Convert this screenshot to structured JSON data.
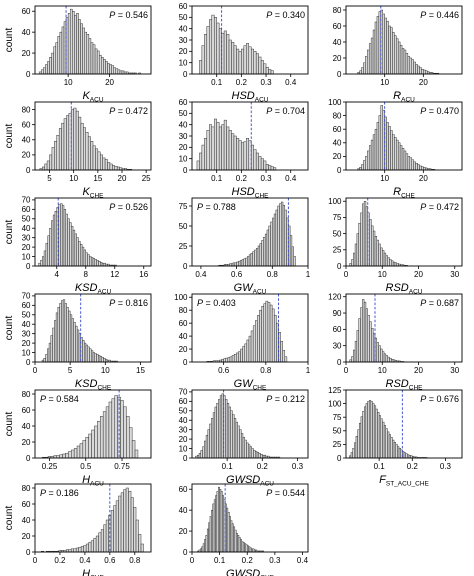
{
  "chart_data": [
    {
      "type": "bar",
      "xlabel": "K",
      "xlabel_sub": "ACU",
      "xlabel_italic": true,
      "ylabel": "count",
      "annotation": "P = 0.546",
      "annotation_pos": "top-right",
      "xlim": [
        2,
        30
      ],
      "ylim": [
        0,
        65
      ],
      "xticks": [
        10,
        20
      ],
      "yticks": [
        0,
        20,
        40,
        60
      ],
      "dashed_line_x": 9.5,
      "bin_start": 3,
      "bin_width": 0.5,
      "values": [
        2,
        4,
        6,
        9,
        12,
        16,
        20,
        26,
        30,
        36,
        40,
        45,
        50,
        54,
        58,
        62,
        60,
        56,
        58,
        52,
        48,
        44,
        40,
        38,
        34,
        30,
        28,
        24,
        22,
        18,
        16,
        14,
        12,
        10,
        9,
        8,
        6,
        5,
        4,
        3,
        3,
        2,
        2,
        1,
        1,
        1,
        1,
        0,
        1
      ]
    },
    {
      "type": "bar",
      "xlabel": "HSD",
      "xlabel_sub": "ACU",
      "xlabel_italic": true,
      "ylabel": "",
      "annotation": "P = 0.340",
      "annotation_pos": "top-right",
      "xlim": [
        0,
        0.47
      ],
      "ylim": [
        0,
        60
      ],
      "xticks": [
        0.1,
        0.2,
        0.3,
        0.4
      ],
      "yticks": [
        0,
        10,
        20,
        30,
        40,
        50,
        60
      ],
      "dashed_line_x": 0.12,
      "bin_start": 0.03,
      "bin_width": 0.01,
      "values": [
        12,
        25,
        35,
        42,
        48,
        52,
        50,
        45,
        40,
        36,
        38,
        35,
        30,
        28,
        25,
        22,
        20,
        22,
        25,
        27,
        24,
        22,
        20,
        18,
        15,
        12,
        9,
        6,
        4,
        3
      ]
    },
    {
      "type": "bar",
      "xlabel": "R",
      "xlabel_sub": "ACU",
      "xlabel_italic": true,
      "ylabel": "",
      "annotation": "P = 0.446",
      "annotation_pos": "top-right",
      "xlim": [
        0,
        30
      ],
      "ylim": [
        0,
        85
      ],
      "xticks": [
        10,
        20
      ],
      "yticks": [
        0,
        20,
        40,
        60,
        80
      ],
      "dashed_line_x": 9,
      "bin_start": 3,
      "bin_width": 0.5,
      "values": [
        2,
        4,
        8,
        14,
        22,
        30,
        38,
        45,
        55,
        65,
        72,
        78,
        80,
        75,
        70,
        66,
        60,
        58,
        52,
        48,
        44,
        40,
        36,
        32,
        30,
        26,
        22,
        20,
        18,
        15,
        12,
        10,
        8,
        6,
        5,
        4,
        3,
        2,
        2,
        1,
        1,
        1
      ]
    },
    {
      "type": "bar",
      "xlabel": "K",
      "xlabel_sub": "CHE",
      "xlabel_italic": true,
      "ylabel": "count",
      "annotation": "P = 0.472",
      "annotation_pos": "top-right",
      "xlim": [
        2,
        26
      ],
      "ylim": [
        0,
        90
      ],
      "xticks": [
        5,
        10,
        15,
        20,
        25
      ],
      "yticks": [
        0,
        20,
        40,
        60,
        80
      ],
      "dashed_line_x": 9.5,
      "bin_start": 3,
      "bin_width": 0.5,
      "values": [
        2,
        4,
        8,
        12,
        20,
        30,
        38,
        46,
        55,
        62,
        68,
        72,
        75,
        80,
        82,
        78,
        70,
        62,
        56,
        50,
        44,
        38,
        32,
        28,
        24,
        20,
        16,
        14,
        10,
        8,
        6,
        5,
        4,
        3,
        2,
        2,
        1,
        1
      ]
    },
    {
      "type": "bar",
      "xlabel": "HSD",
      "xlabel_sub": "CHE",
      "xlabel_italic": true,
      "ylabel": "",
      "annotation": "P = 0.704",
      "annotation_pos": "top-right",
      "xlim": [
        0,
        0.47
      ],
      "ylim": [
        0,
        60
      ],
      "xticks": [
        0.1,
        0.2,
        0.3,
        0.4
      ],
      "yticks": [
        0,
        10,
        20,
        30,
        40,
        50,
        60
      ],
      "dashed_line_x": 0.24,
      "bin_start": 0.02,
      "bin_width": 0.01,
      "values": [
        8,
        15,
        22,
        28,
        35,
        40,
        38,
        45,
        42,
        38,
        40,
        44,
        38,
        35,
        32,
        30,
        28,
        26,
        24,
        25,
        28,
        26,
        22,
        18,
        15,
        12,
        10,
        8,
        5,
        4,
        3,
        2
      ]
    },
    {
      "type": "bar",
      "xlabel": "R",
      "xlabel_sub": "CHE",
      "xlabel_italic": true,
      "ylabel": "",
      "annotation": "P = 0.470",
      "annotation_pos": "top-right",
      "xlim": [
        0,
        30
      ],
      "ylim": [
        0,
        100
      ],
      "xticks": [
        10,
        20
      ],
      "yticks": [
        0,
        20,
        40,
        60,
        80,
        100
      ],
      "dashed_line_x": 10,
      "bin_start": 3,
      "bin_width": 0.5,
      "values": [
        2,
        4,
        8,
        14,
        20,
        28,
        36,
        44,
        52,
        60,
        70,
        80,
        95,
        88,
        78,
        70,
        64,
        58,
        52,
        48,
        44,
        40,
        36,
        32,
        28,
        24,
        20,
        18,
        15,
        12,
        10,
        8,
        6,
        5,
        4,
        3,
        2,
        2,
        1,
        1
      ]
    },
    {
      "type": "bar",
      "xlabel": "KSD",
      "xlabel_sub": "ACU",
      "xlabel_italic": true,
      "ylabel": "count",
      "annotation": "P = 0.526",
      "annotation_pos": "top-right",
      "xlim": [
        1,
        17
      ],
      "ylim": [
        0,
        72
      ],
      "xticks": [
        4,
        8,
        12,
        16
      ],
      "yticks": [
        0,
        10,
        20,
        30,
        40,
        50,
        60,
        70
      ],
      "dashed_line_x": 4.2,
      "bin_start": 1.5,
      "bin_width": 0.25,
      "values": [
        3,
        6,
        10,
        16,
        24,
        32,
        40,
        48,
        54,
        58,
        62,
        65,
        66,
        64,
        60,
        55,
        50,
        46,
        42,
        38,
        34,
        30,
        26,
        23,
        20,
        17,
        14,
        12,
        10,
        9,
        8,
        7,
        6,
        5,
        4,
        3,
        3,
        2,
        2,
        1,
        1,
        1,
        1
      ]
    },
    {
      "type": "bar",
      "xlabel": "GW",
      "xlabel_sub": "ACU",
      "xlabel_italic": true,
      "ylabel": "",
      "annotation": "P = 0.788",
      "annotation_pos": "top-left",
      "xlim": [
        0.35,
        1.0
      ],
      "ylim": [
        0,
        85
      ],
      "xticks": [
        0.4,
        0.6,
        0.8,
        1.0
      ],
      "yticks": [
        0,
        25,
        50,
        75
      ],
      "dashed_line_x": 0.89,
      "bin_start": 0.5,
      "bin_width": 0.01,
      "values": [
        1,
        1,
        1,
        2,
        2,
        2,
        3,
        3,
        4,
        4,
        5,
        6,
        7,
        8,
        9,
        10,
        12,
        14,
        16,
        18,
        20,
        22,
        25,
        28,
        32,
        36,
        40,
        45,
        50,
        55,
        60,
        65,
        70,
        75,
        78,
        80,
        76,
        70,
        60,
        50,
        38,
        24,
        12
      ]
    },
    {
      "type": "bar",
      "xlabel": "RSD",
      "xlabel_sub": "ACU",
      "xlabel_italic": true,
      "ylabel": "",
      "annotation": "P = 0.472",
      "annotation_pos": "top-right",
      "xlim": [
        0,
        32
      ],
      "ylim": [
        0,
        105
      ],
      "xticks": [
        0,
        10,
        20,
        30
      ],
      "yticks": [
        0,
        25,
        50,
        75,
        100
      ],
      "dashed_line_x": 6,
      "bin_start": 1,
      "bin_width": 0.5,
      "values": [
        4,
        10,
        20,
        34,
        50,
        66,
        82,
        96,
        100,
        92,
        82,
        72,
        62,
        54,
        46,
        40,
        34,
        28,
        24,
        20,
        16,
        13,
        10,
        8,
        6,
        5,
        4,
        3,
        2,
        2,
        1,
        1
      ]
    },
    {
      "type": "bar",
      "xlabel": "KSD",
      "xlabel_sub": "CHE",
      "xlabel_italic": true,
      "ylabel": "count",
      "annotation": "P = 0.816",
      "annotation_pos": "top-right",
      "xlim": [
        0,
        16.5
      ],
      "ylim": [
        0,
        72
      ],
      "xticks": [
        0,
        5,
        10,
        15
      ],
      "yticks": [
        0,
        10,
        20,
        30,
        40,
        50,
        60,
        70
      ],
      "dashed_line_x": 6.5,
      "bin_start": 1,
      "bin_width": 0.25,
      "values": [
        2,
        4,
        8,
        14,
        20,
        28,
        36,
        44,
        52,
        58,
        62,
        65,
        66,
        62,
        58,
        54,
        50,
        46,
        42,
        38,
        34,
        30,
        26,
        23,
        20,
        18,
        16,
        14,
        12,
        10,
        9,
        8,
        7,
        6,
        5,
        4,
        3,
        2,
        2,
        1,
        1,
        1,
        1
      ]
    },
    {
      "type": "bar",
      "xlabel": "GW",
      "xlabel_sub": "CHE",
      "xlabel_italic": true,
      "ylabel": "",
      "annotation": "P = 0.403",
      "annotation_pos": "top-left",
      "xlim": [
        0.45,
        1.0
      ],
      "ylim": [
        0,
        105
      ],
      "xticks": [
        0.6,
        0.8,
        1.0
      ],
      "yticks": [
        0,
        20,
        40,
        60,
        80,
        100
      ],
      "dashed_line_x": 0.86,
      "bin_start": 0.52,
      "bin_width": 0.01,
      "values": [
        1,
        1,
        1,
        2,
        2,
        2,
        3,
        4,
        5,
        6,
        7,
        8,
        10,
        12,
        14,
        16,
        20,
        24,
        28,
        34,
        40,
        48,
        56,
        64,
        72,
        80,
        86,
        90,
        94,
        92,
        88,
        82,
        72,
        60,
        46,
        32,
        18,
        8
      ]
    },
    {
      "type": "bar",
      "xlabel": "RSD",
      "xlabel_sub": "CHE",
      "xlabel_italic": true,
      "ylabel": "",
      "annotation": "P = 0.687",
      "annotation_pos": "top-right",
      "xlim": [
        0,
        32
      ],
      "ylim": [
        0,
        125
      ],
      "xticks": [
        0,
        10,
        20,
        30
      ],
      "yticks": [
        0,
        30,
        60,
        90,
        120
      ],
      "dashed_line_x": 8,
      "bin_start": 1,
      "bin_width": 0.5,
      "values": [
        4,
        10,
        22,
        38,
        58,
        80,
        100,
        115,
        110,
        98,
        86,
        74,
        62,
        52,
        44,
        36,
        30,
        24,
        19,
        15,
        12,
        9,
        7,
        5,
        4,
        3,
        2,
        2,
        1,
        1
      ]
    },
    {
      "type": "bar",
      "xlabel": "H",
      "xlabel_sub": "ACU",
      "xlabel_italic": true,
      "ylabel": "count",
      "annotation": "P = 0.584",
      "annotation_pos": "top-left",
      "xlim": [
        0.15,
        0.95
      ],
      "ylim": [
        0,
        85
      ],
      "xticks": [
        0.25,
        0.5,
        0.75
      ],
      "yticks": [
        0,
        20,
        40,
        60,
        80
      ],
      "dashed_line_x": 0.73,
      "bin_start": 0.2,
      "bin_width": 0.02,
      "values": [
        1,
        1,
        2,
        2,
        3,
        3,
        4,
        5,
        6,
        8,
        10,
        12,
        15,
        18,
        22,
        26,
        30,
        35,
        40,
        46,
        52,
        58,
        64,
        70,
        74,
        78,
        76,
        72,
        64,
        52,
        38,
        22,
        10
      ]
    },
    {
      "type": "bar",
      "xlabel": "GWSD",
      "xlabel_sub": "ACU",
      "xlabel_italic": true,
      "ylabel": "",
      "annotation": "P = 0.212",
      "annotation_pos": "top-right",
      "xlim": [
        0,
        0.33
      ],
      "ylim": [
        0,
        72
      ],
      "xticks": [
        0.1,
        0.2,
        0.3
      ],
      "yticks": [
        0,
        10,
        20,
        30,
        40,
        50,
        60,
        70
      ],
      "dashed_line_x": 0.09,
      "bin_start": 0.01,
      "bin_width": 0.005,
      "values": [
        2,
        3,
        5,
        8,
        12,
        18,
        24,
        30,
        36,
        42,
        48,
        54,
        58,
        62,
        66,
        68,
        66,
        62,
        58,
        54,
        50,
        46,
        42,
        38,
        34,
        30,
        26,
        22,
        19,
        16,
        14,
        12,
        10,
        8,
        7,
        6,
        5,
        4,
        3,
        3,
        2,
        2,
        1,
        1,
        1,
        1,
        1,
        1
      ]
    },
    {
      "type": "bar",
      "xlabel": "F",
      "xlabel_sub": "ST_ACU_CHE",
      "xlabel_italic": true,
      "ylabel": "",
      "annotation": "P = 0.676",
      "annotation_pos": "top-right",
      "xlim": [
        0,
        0.35
      ],
      "ylim": [
        0,
        125
      ],
      "xticks": [
        0.1,
        0.2,
        0.3
      ],
      "yticks": [
        0,
        25,
        50,
        75,
        100,
        125
      ],
      "dashed_line_x": 0.17,
      "bin_start": 0.01,
      "bin_width": 0.005,
      "values": [
        4,
        10,
        18,
        28,
        40,
        52,
        64,
        76,
        86,
        94,
        100,
        104,
        106,
        104,
        100,
        96,
        90,
        84,
        78,
        72,
        66,
        60,
        54,
        48,
        43,
        38,
        33,
        29,
        25,
        21,
        18,
        15,
        12,
        10,
        8,
        6,
        5,
        4,
        3,
        2,
        2,
        1,
        1,
        1,
        1,
        1,
        1
      ]
    },
    {
      "type": "bar",
      "xlabel": "H",
      "xlabel_sub": "CHE",
      "xlabel_italic": true,
      "ylabel": "count",
      "annotation": "P = 0.186",
      "annotation_pos": "top-left",
      "xlim": [
        0,
        0.93
      ],
      "ylim": [
        0,
        85
      ],
      "xticks": [
        0.0,
        0.2,
        0.4,
        0.6,
        0.8
      ],
      "yticks": [
        0,
        20,
        40,
        60,
        80
      ],
      "dashed_line_x": 0.6,
      "bin_start": 0.05,
      "bin_width": 0.02,
      "values": [
        1,
        0,
        1,
        1,
        1,
        1,
        1,
        2,
        2,
        2,
        3,
        3,
        4,
        4,
        5,
        6,
        7,
        8,
        10,
        12,
        14,
        17,
        20,
        24,
        28,
        34,
        40,
        46,
        52,
        58,
        64,
        70,
        74,
        78,
        80,
        76,
        68,
        56,
        40,
        22,
        10
      ]
    },
    {
      "type": "bar",
      "xlabel": "GWSD",
      "xlabel_sub": "CHE",
      "xlabel_italic": true,
      "ylabel": "",
      "annotation": "P = 0.544",
      "annotation_pos": "top-right",
      "xlim": [
        0,
        0.42
      ],
      "ylim": [
        0,
        65
      ],
      "xticks": [
        0.0,
        0.1,
        0.2,
        0.3,
        0.4
      ],
      "yticks": [
        0,
        20,
        40,
        60
      ],
      "dashed_line_x": 0.12,
      "bin_start": 0.02,
      "bin_width": 0.005,
      "values": [
        1,
        2,
        3,
        5,
        8,
        12,
        16,
        22,
        28,
        34,
        40,
        46,
        50,
        54,
        58,
        62,
        60,
        58,
        54,
        50,
        46,
        42,
        38,
        34,
        30,
        27,
        24,
        21,
        18,
        16,
        14,
        12,
        10,
        9,
        8,
        7,
        6,
        5,
        4,
        3,
        3,
        2,
        2,
        1,
        1,
        1,
        1,
        1
      ]
    }
  ]
}
